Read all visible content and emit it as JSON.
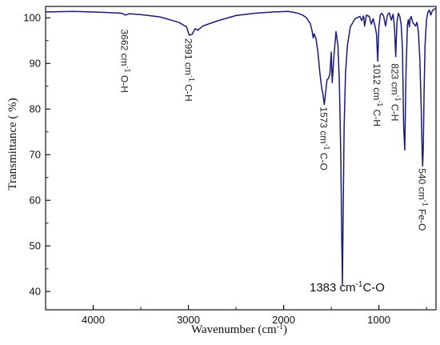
{
  "chart_data": {
    "type": "line",
    "title": "",
    "xlabel": "Wavenumber (cm-1)",
    "ylabel": "Transmittance (  %)",
    "xlim": [
      4500,
      400
    ],
    "ylim": [
      36,
      102.5
    ],
    "x_reversed": true,
    "xticks": [
      4000,
      3000,
      2000,
      1000
    ],
    "xtick_labels": [
      "4000",
      "3000",
      "2000",
      "1000"
    ],
    "yticks": [
      40,
      50,
      60,
      70,
      80,
      90,
      100
    ],
    "ytick_labels": [
      "40",
      "50",
      "60",
      "70",
      "80",
      "90",
      "100"
    ],
    "grid": false,
    "line_color": "#1a1a7a",
    "series": [
      {
        "name": "",
        "x": [
          4500,
          4200,
          3900,
          3700,
          3662,
          3620,
          3500,
          3300,
          3100,
          3020,
          2991,
          2960,
          2930,
          2900,
          2850,
          2700,
          2500,
          2300,
          2100,
          1950,
          1900,
          1850,
          1800,
          1760,
          1720,
          1700,
          1690,
          1680,
          1660,
          1640,
          1620,
          1600,
          1590,
          1573,
          1560,
          1545,
          1530,
          1515,
          1500,
          1490,
          1470,
          1450,
          1430,
          1415,
          1400,
          1390,
          1383,
          1376,
          1365,
          1350,
          1330,
          1300,
          1250,
          1200,
          1180,
          1160,
          1150,
          1130,
          1100,
          1080,
          1060,
          1040,
          1025,
          1012,
          1000,
          985,
          970,
          950,
          930,
          910,
          890,
          870,
          850,
          835,
          823,
          810,
          795,
          780,
          765,
          752,
          740,
          728,
          715,
          700,
          690,
          680,
          672,
          660,
          645,
          630,
          615,
          600,
          585,
          570,
          555,
          545,
          540,
          533,
          525,
          515,
          500,
          485,
          470,
          455,
          440,
          420,
          400
        ],
        "y": [
          101.3,
          101.4,
          101.2,
          101.0,
          100.6,
          100.9,
          100.7,
          100.2,
          99.0,
          98.0,
          96.2,
          96.4,
          97.6,
          97.3,
          98.2,
          99.3,
          100.5,
          101.0,
          101.3,
          101.4,
          101.2,
          101.0,
          100.6,
          100.0,
          98.7,
          97.0,
          95.6,
          96.5,
          95.4,
          92.5,
          88.0,
          84.5,
          83.6,
          81.0,
          83.5,
          86.4,
          86.7,
          87.6,
          92.5,
          85.8,
          92.0,
          97.0,
          94.0,
          86.0,
          70.0,
          52.0,
          41.5,
          55.0,
          76.0,
          88.0,
          94.0,
          98.0,
          99.8,
          100.3,
          99.4,
          100.4,
          98.2,
          100.6,
          100.3,
          98.6,
          99.8,
          98.1,
          96.5,
          90.5,
          98.0,
          100.6,
          101.0,
          100.4,
          98.2,
          100.6,
          101.1,
          99.5,
          100.8,
          97.5,
          91.5,
          99.0,
          101.0,
          100.3,
          98.3,
          93.0,
          76.5,
          71.0,
          88.0,
          98.5,
          99.6,
          98.0,
          99.8,
          100.3,
          99.0,
          98.6,
          98.2,
          99.0,
          97.0,
          91.0,
          80.0,
          70.0,
          67.5,
          72.0,
          84.0,
          94.0,
          99.5,
          101.2,
          101.7,
          100.6,
          101.5,
          101.9,
          102.0
        ]
      }
    ],
    "annotations": [
      {
        "text": "3662 cm-1  O-H",
        "x": 3662,
        "y": 97.5,
        "rotation": 90
      },
      {
        "text": "2991 cm-1  C-H",
        "x": 2991,
        "y": 95.5,
        "rotation": 90
      },
      {
        "text": "1573 cm-1  C-O",
        "x": 1573,
        "y": 80.5,
        "rotation": 90
      },
      {
        "text": "1012 cm-1  C-H",
        "x": 1012,
        "y": 90.0,
        "rotation": 90
      },
      {
        "text": "823 cm-1  C-H",
        "x": 823,
        "y": 90.0,
        "rotation": 90
      },
      {
        "text": "540 cm-1  Fe-O",
        "x": 540,
        "y": 67.0,
        "rotation": 90
      },
      {
        "text": "1383 cm-1C-O",
        "x": 1383,
        "y": 40.0,
        "rotation": 0
      }
    ]
  }
}
